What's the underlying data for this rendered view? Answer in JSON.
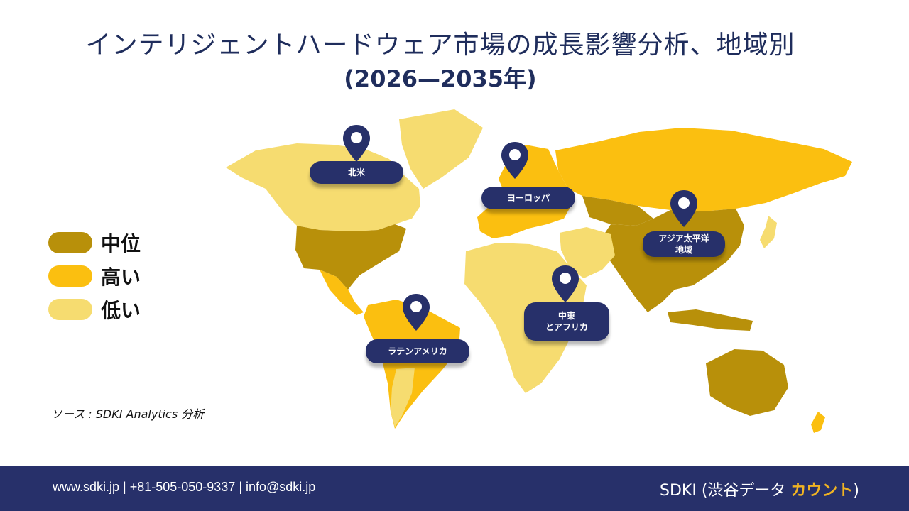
{
  "title": "インテリジェントハードウェア市場の成長影響分析、地域別",
  "subtitle": "(2026—2035年)",
  "legend": {
    "items": [
      {
        "label": "中位",
        "color": "#b8900a"
      },
      {
        "label": "高い",
        "color": "#fbbf10"
      },
      {
        "label": "低い",
        "color": "#f6dc70"
      }
    ]
  },
  "regions": {
    "north_america": {
      "label": "北米",
      "level": "中位"
    },
    "europe": {
      "label": "ヨーロッパ",
      "level": "高い"
    },
    "asia_pacific": {
      "line1": "アジア太平洋",
      "line2": "地域",
      "level": "中位"
    },
    "middle_east_africa": {
      "line1": "中東",
      "line2": "とアフリカ",
      "level": "低い"
    },
    "latin_america": {
      "label": "ラテンアメリカ",
      "level": "高い"
    }
  },
  "source": "ソース : SDKI Analytics 分析",
  "footer": {
    "contact": "www.sdki.jp  | +81-505-050-9337 | info@sdki.jp",
    "brand_main": "SDKI (渋谷データ ",
    "brand_accent": "カウント",
    "brand_close": ")"
  },
  "colors": {
    "navy": "#27306a",
    "title": "#1f2d5c",
    "medium": "#b8900a",
    "high": "#fbbf10",
    "low": "#f6dc70"
  }
}
